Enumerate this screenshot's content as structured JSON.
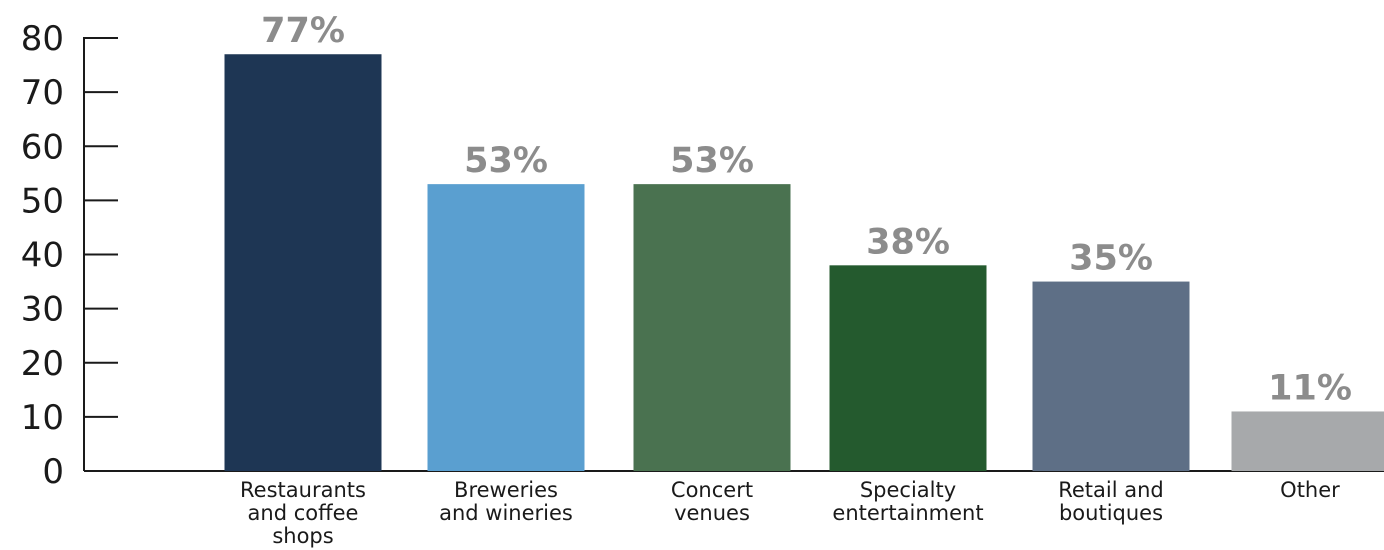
{
  "chart_data": {
    "type": "bar",
    "title": "",
    "xlabel": "",
    "ylabel": "",
    "ylim": [
      0,
      80
    ],
    "yticks": [
      "0",
      "10",
      "20",
      "30",
      "40",
      "50",
      "60",
      "70",
      "80"
    ],
    "grid": false,
    "legend": "none",
    "categories": [
      "Restaurants and coffee shops",
      "Breweries and wineries",
      "Concert venues",
      "Specialty entertainment",
      "Retail and boutiques",
      "Other"
    ],
    "category_lines": [
      [
        "Restaurants",
        "and coffee",
        "shops"
      ],
      [
        "Breweries",
        "and wineries"
      ],
      [
        "Concert",
        "venues"
      ],
      [
        "Specialty",
        "entertainment"
      ],
      [
        "Retail and",
        "boutiques"
      ],
      [
        "Other"
      ]
    ],
    "values": [
      77,
      53,
      53,
      38,
      35,
      11
    ],
    "data_labels": [
      "77%",
      "53%",
      "53%",
      "38%",
      "35%",
      "11%"
    ],
    "colors": [
      "#1e3654",
      "#5a9fd0",
      "#4a7250",
      "#245a2e",
      "#5e6f86",
      "#a7a9ab"
    ]
  }
}
